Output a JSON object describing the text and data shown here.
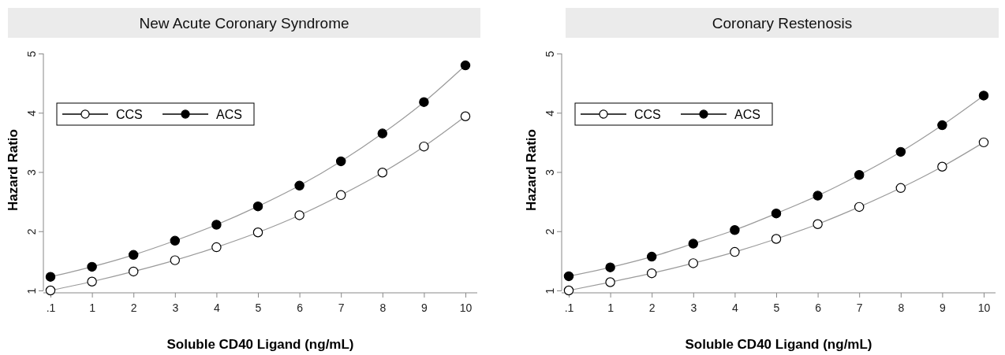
{
  "chart_data": [
    {
      "type": "line",
      "title": "New Acute Coronary Syndrome",
      "xlabel": "Soluble CD40 Ligand (ng/mL)",
      "ylabel": "Hazard Ratio",
      "categories": [
        ".1",
        "1",
        "2",
        "3",
        "4",
        "5",
        "6",
        "7",
        "8",
        "9",
        "10"
      ],
      "ylim": [
        1,
        5
      ],
      "yticks": [
        1,
        2,
        3,
        4,
        5
      ],
      "marker": "circle",
      "legend": "top left",
      "grid": false,
      "series": [
        {
          "name": "CCS",
          "color": "#ffffff",
          "values": [
            1.0,
            1.15,
            1.32,
            1.51,
            1.73,
            1.98,
            2.27,
            2.61,
            2.99,
            3.43,
            3.94
          ]
        },
        {
          "name": "ACS",
          "color": "#000000",
          "values": [
            1.23,
            1.4,
            1.6,
            1.84,
            2.11,
            2.42,
            2.77,
            3.18,
            3.65,
            4.18,
            4.8
          ]
        }
      ]
    },
    {
      "type": "line",
      "title": "Coronary Restenosis",
      "xlabel": "Soluble CD40 Ligand (ng/mL)",
      "ylabel": "Hazard Ratio",
      "categories": [
        ".1",
        "1",
        "2",
        "3",
        "4",
        "5",
        "6",
        "7",
        "8",
        "9",
        "10"
      ],
      "ylim": [
        1,
        5
      ],
      "yticks": [
        1,
        2,
        3,
        4,
        5
      ],
      "marker": "circle",
      "legend": "top left",
      "grid": false,
      "series": [
        {
          "name": "CCS",
          "color": "#ffffff",
          "values": [
            1.0,
            1.14,
            1.29,
            1.46,
            1.65,
            1.87,
            2.12,
            2.41,
            2.73,
            3.09,
            3.5
          ]
        },
        {
          "name": "ACS",
          "color": "#000000",
          "values": [
            1.24,
            1.39,
            1.57,
            1.79,
            2.02,
            2.3,
            2.6,
            2.95,
            3.34,
            3.79,
            4.29
          ]
        }
      ]
    }
  ]
}
